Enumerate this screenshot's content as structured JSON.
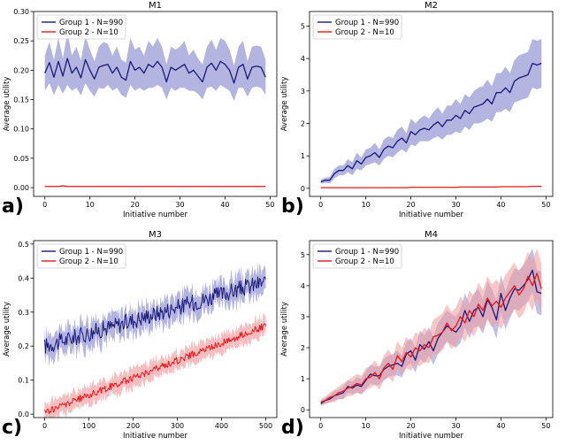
{
  "figure": {
    "colors": {
      "group1": "#1a1a7a",
      "group1_band": "#8c8cd0",
      "group2": "#e8161b",
      "group2_band": "#f29a9c",
      "frame": "#000000"
    }
  },
  "chart_data": [
    {
      "type": "line",
      "title": "M1",
      "panel_label": "a)",
      "xlabel": "Initiative number",
      "ylabel": "Average utility",
      "xlim": [
        -2.5,
        51.5
      ],
      "ylim": [
        -0.015,
        0.3
      ],
      "xticks": [
        0,
        10,
        20,
        30,
        40,
        50
      ],
      "yticks": [
        0.0,
        0.05,
        0.1,
        0.15,
        0.2,
        0.25,
        0.3
      ],
      "ytick_labels": [
        "0.00",
        "0.05",
        "0.10",
        "0.15",
        "0.20",
        "0.25",
        "0.30"
      ],
      "legend": {
        "position": "top-left",
        "entries": [
          "Group 1 - N=990",
          "Group 2 - N=10"
        ]
      },
      "x": [
        0,
        1,
        2,
        3,
        4,
        5,
        6,
        7,
        8,
        9,
        10,
        11,
        12,
        13,
        14,
        15,
        16,
        17,
        18,
        19,
        20,
        21,
        22,
        23,
        24,
        25,
        26,
        27,
        28,
        29,
        30,
        31,
        32,
        33,
        34,
        35,
        36,
        37,
        38,
        39,
        40,
        41,
        42,
        43,
        44,
        45,
        46,
        47,
        48,
        49
      ],
      "series": [
        {
          "name": "Group 1 - N=990",
          "values": [
            0.195,
            0.213,
            0.188,
            0.215,
            0.19,
            0.22,
            0.195,
            0.205,
            0.187,
            0.218,
            0.2,
            0.185,
            0.205,
            0.208,
            0.21,
            0.195,
            0.205,
            0.188,
            0.183,
            0.215,
            0.2,
            0.205,
            0.195,
            0.21,
            0.205,
            0.215,
            0.205,
            0.18,
            0.205,
            0.2,
            0.205,
            0.21,
            0.195,
            0.2,
            0.19,
            0.18,
            0.205,
            0.212,
            0.2,
            0.215,
            0.21,
            0.2,
            0.178,
            0.205,
            0.21,
            0.185,
            0.205,
            0.207,
            0.205,
            0.188
          ],
          "spread": [
            0.03,
            0.035,
            0.03,
            0.04,
            0.03,
            0.045,
            0.03,
            0.035,
            0.03,
            0.04,
            0.035,
            0.03,
            0.035,
            0.04,
            0.035,
            0.03,
            0.035,
            0.03,
            0.03,
            0.04,
            0.035,
            0.035,
            0.03,
            0.04,
            0.035,
            0.04,
            0.035,
            0.03,
            0.035,
            0.035,
            0.035,
            0.04,
            0.03,
            0.035,
            0.03,
            0.03,
            0.035,
            0.04,
            0.035,
            0.04,
            0.04,
            0.035,
            0.03,
            0.035,
            0.04,
            0.03,
            0.035,
            0.035,
            0.035,
            0.03
          ]
        },
        {
          "name": "Group 2 - N=10",
          "values": [
            0.002,
            0.002,
            0.002,
            0.002,
            0.003,
            0.002,
            0.002,
            0.002,
            0.002,
            0.002,
            0.002,
            0.002,
            0.002,
            0.002,
            0.002,
            0.002,
            0.002,
            0.002,
            0.002,
            0.002,
            0.002,
            0.002,
            0.002,
            0.002,
            0.002,
            0.002,
            0.002,
            0.002,
            0.002,
            0.002,
            0.002,
            0.002,
            0.002,
            0.002,
            0.002,
            0.002,
            0.002,
            0.002,
            0.002,
            0.002,
            0.002,
            0.002,
            0.002,
            0.002,
            0.002,
            0.002,
            0.002,
            0.002,
            0.002,
            0.002
          ],
          "spread": [
            0.0008,
            0.0008,
            0.0008,
            0.0008,
            0.0008,
            0.0008,
            0.0008,
            0.0008,
            0.0008,
            0.0008,
            0.0008,
            0.0008,
            0.0008,
            0.0008,
            0.0008,
            0.0008,
            0.0008,
            0.0008,
            0.0008,
            0.0008,
            0.0008,
            0.0008,
            0.0008,
            0.0008,
            0.0008,
            0.0008,
            0.0008,
            0.0008,
            0.0008,
            0.0008,
            0.0008,
            0.0008,
            0.0008,
            0.0008,
            0.0008,
            0.0008,
            0.0008,
            0.0008,
            0.0008,
            0.0008,
            0.0008,
            0.0008,
            0.0008,
            0.0008,
            0.0008,
            0.0008,
            0.0008,
            0.0008,
            0.0008,
            0.0008
          ]
        }
      ]
    },
    {
      "type": "line",
      "title": "M2",
      "panel_label": "b)",
      "xlabel": "Initiative number",
      "ylabel": "Average utility",
      "xlim": [
        -2.5,
        51.5
      ],
      "ylim": [
        -0.25,
        5.45
      ],
      "xticks": [
        0,
        10,
        20,
        30,
        40,
        50
      ],
      "yticks": [
        0,
        1,
        2,
        3,
        4,
        5
      ],
      "ytick_labels": [
        "0",
        "1",
        "2",
        "3",
        "4",
        "5"
      ],
      "legend": {
        "position": "top-left",
        "entries": [
          "Group 1 - N=990",
          "Group 2 - N=10"
        ]
      },
      "x": [
        0,
        1,
        2,
        3,
        4,
        5,
        6,
        7,
        8,
        9,
        10,
        11,
        12,
        13,
        14,
        15,
        16,
        17,
        18,
        19,
        20,
        21,
        22,
        23,
        24,
        25,
        26,
        27,
        28,
        29,
        30,
        31,
        32,
        33,
        34,
        35,
        36,
        37,
        38,
        39,
        40,
        41,
        42,
        43,
        44,
        45,
        46,
        47,
        48,
        49
      ],
      "series": [
        {
          "name": "Group 1 - N=990",
          "values": [
            0.2,
            0.25,
            0.25,
            0.45,
            0.55,
            0.55,
            0.7,
            0.6,
            0.85,
            0.75,
            0.95,
            1.0,
            1.1,
            0.95,
            1.2,
            1.3,
            1.25,
            1.45,
            1.55,
            1.4,
            1.75,
            1.65,
            1.8,
            1.85,
            1.8,
            1.95,
            2.05,
            1.9,
            2.1,
            2.1,
            2.25,
            2.15,
            2.4,
            2.3,
            2.5,
            2.55,
            2.6,
            2.75,
            2.6,
            2.95,
            2.95,
            3.1,
            2.95,
            3.3,
            3.4,
            3.45,
            3.5,
            3.85,
            3.8,
            3.85
          ],
          "spread": [
            0.06,
            0.08,
            0.1,
            0.15,
            0.15,
            0.15,
            0.2,
            0.2,
            0.25,
            0.2,
            0.25,
            0.25,
            0.3,
            0.25,
            0.3,
            0.3,
            0.3,
            0.35,
            0.35,
            0.3,
            0.4,
            0.35,
            0.35,
            0.4,
            0.35,
            0.4,
            0.45,
            0.4,
            0.45,
            0.45,
            0.5,
            0.45,
            0.5,
            0.5,
            0.5,
            0.55,
            0.55,
            0.6,
            0.55,
            0.6,
            0.6,
            0.65,
            0.6,
            0.65,
            0.7,
            0.7,
            0.7,
            0.75,
            0.75,
            0.75
          ]
        },
        {
          "name": "Group 2 - N=10",
          "values": [
            0.02,
            0.02,
            0.02,
            0.02,
            0.02,
            0.02,
            0.02,
            0.02,
            0.02,
            0.02,
            0.02,
            0.02,
            0.02,
            0.02,
            0.02,
            0.02,
            0.02,
            0.02,
            0.02,
            0.02,
            0.03,
            0.03,
            0.03,
            0.03,
            0.03,
            0.03,
            0.03,
            0.03,
            0.03,
            0.03,
            0.03,
            0.04,
            0.04,
            0.04,
            0.04,
            0.04,
            0.04,
            0.04,
            0.04,
            0.04,
            0.05,
            0.05,
            0.05,
            0.05,
            0.05,
            0.05,
            0.05,
            0.06,
            0.06,
            0.06
          ],
          "spread": [
            0.005,
            0.005,
            0.005,
            0.005,
            0.005,
            0.005,
            0.005,
            0.005,
            0.005,
            0.005,
            0.005,
            0.005,
            0.005,
            0.005,
            0.005,
            0.005,
            0.005,
            0.005,
            0.005,
            0.005,
            0.005,
            0.005,
            0.005,
            0.005,
            0.005,
            0.005,
            0.005,
            0.005,
            0.005,
            0.005,
            0.005,
            0.005,
            0.005,
            0.005,
            0.005,
            0.005,
            0.005,
            0.005,
            0.005,
            0.005,
            0.005,
            0.005,
            0.005,
            0.005,
            0.005,
            0.005,
            0.005,
            0.005,
            0.005,
            0.005
          ]
        }
      ]
    },
    {
      "type": "line",
      "title": "M3",
      "panel_label": "c)",
      "xlabel": "Initiative number",
      "ylabel": "Average utility",
      "xlim": [
        -25,
        525
      ],
      "ylim": [
        -0.01,
        0.51
      ],
      "xticks": [
        0,
        100,
        200,
        300,
        400,
        500
      ],
      "yticks": [
        0.0,
        0.1,
        0.2,
        0.3,
        0.4,
        0.5
      ],
      "ytick_labels": [
        "0.0",
        "0.1",
        "0.2",
        "0.3",
        "0.4",
        "0.5"
      ],
      "legend": {
        "position": "top-left",
        "entries": [
          "Group 1 - N=990",
          "Group 2 - N=10"
        ]
      },
      "trend": {
        "x_start": 0,
        "x_end": 500,
        "step": 2,
        "series": [
          {
            "name": "Group 1 - N=990",
            "y_start": 0.2,
            "y_end": 0.39,
            "noise": 0.025,
            "spread": 0.04
          },
          {
            "name": "Group 2 - N=10",
            "y_start": 0.005,
            "y_end": 0.26,
            "noise": 0.01,
            "spread": 0.03
          }
        ]
      }
    },
    {
      "type": "line",
      "title": "M4",
      "panel_label": "d)",
      "xlabel": "Initiative number",
      "ylabel": "Average utility",
      "xlim": [
        -2.5,
        51.5
      ],
      "ylim": [
        -0.25,
        5.45
      ],
      "xticks": [
        0,
        10,
        20,
        30,
        40,
        50
      ],
      "yticks": [
        0,
        1,
        2,
        3,
        4,
        5
      ],
      "ytick_labels": [
        "0",
        "1",
        "2",
        "3",
        "4",
        "5"
      ],
      "legend": {
        "position": "top-left",
        "entries": [
          "Group 1 - N=990",
          "Group 2 - N=10"
        ]
      },
      "x": [
        0,
        1,
        2,
        3,
        4,
        5,
        6,
        7,
        8,
        9,
        10,
        11,
        12,
        13,
        14,
        15,
        16,
        17,
        18,
        19,
        20,
        21,
        22,
        23,
        24,
        25,
        26,
        27,
        28,
        29,
        30,
        31,
        32,
        33,
        34,
        35,
        36,
        37,
        38,
        39,
        40,
        41,
        42,
        43,
        44,
        45,
        46,
        47,
        48,
        49
      ],
      "series": [
        {
          "name": "Group 1 - N=990",
          "values": [
            0.2,
            0.3,
            0.35,
            0.45,
            0.5,
            0.55,
            0.75,
            0.7,
            0.8,
            0.75,
            0.95,
            1.15,
            1.1,
            1.1,
            1.3,
            1.4,
            1.45,
            1.5,
            1.4,
            1.8,
            1.9,
            1.6,
            2.1,
            1.95,
            2.2,
            1.9,
            2.3,
            2.5,
            2.7,
            2.6,
            2.5,
            2.7,
            3.2,
            2.85,
            3.2,
            3.3,
            3.0,
            3.55,
            3.3,
            2.9,
            3.75,
            3.2,
            3.6,
            3.9,
            3.85,
            4.0,
            4.2,
            4.5,
            3.8,
            3.75
          ],
          "spread": [
            0.08,
            0.1,
            0.12,
            0.15,
            0.15,
            0.2,
            0.2,
            0.2,
            0.25,
            0.25,
            0.3,
            0.3,
            0.3,
            0.3,
            0.35,
            0.35,
            0.35,
            0.4,
            0.35,
            0.4,
            0.4,
            0.4,
            0.45,
            0.45,
            0.45,
            0.45,
            0.5,
            0.5,
            0.5,
            0.5,
            0.5,
            0.55,
            0.55,
            0.55,
            0.55,
            0.6,
            0.55,
            0.6,
            0.6,
            0.6,
            0.6,
            0.6,
            0.65,
            0.65,
            0.65,
            0.65,
            0.7,
            0.7,
            0.7,
            0.7
          ]
        },
        {
          "name": "Group 2 - N=10",
          "values": [
            0.25,
            0.3,
            0.4,
            0.45,
            0.55,
            0.6,
            0.7,
            0.75,
            0.85,
            0.8,
            1.0,
            1.05,
            1.2,
            1.0,
            1.35,
            1.5,
            1.3,
            1.75,
            1.55,
            1.85,
            1.7,
            2.0,
            1.9,
            2.1,
            2.0,
            2.35,
            2.4,
            2.5,
            2.8,
            2.55,
            2.7,
            3.0,
            2.8,
            3.2,
            3.0,
            3.4,
            3.2,
            3.6,
            3.35,
            3.5,
            3.3,
            3.6,
            3.8,
            4.0,
            3.7,
            3.9,
            4.3,
            4.0,
            4.4,
            3.9
          ],
          "spread": [
            0.1,
            0.12,
            0.15,
            0.2,
            0.2,
            0.25,
            0.25,
            0.3,
            0.3,
            0.3,
            0.35,
            0.35,
            0.4,
            0.35,
            0.4,
            0.45,
            0.4,
            0.45,
            0.45,
            0.5,
            0.45,
            0.5,
            0.5,
            0.55,
            0.5,
            0.55,
            0.6,
            0.6,
            0.6,
            0.6,
            0.6,
            0.65,
            0.6,
            0.65,
            0.65,
            0.7,
            0.65,
            0.7,
            0.7,
            0.7,
            0.7,
            0.75,
            0.75,
            0.75,
            0.75,
            0.8,
            0.8,
            0.8,
            0.8,
            0.8
          ]
        }
      ]
    }
  ]
}
